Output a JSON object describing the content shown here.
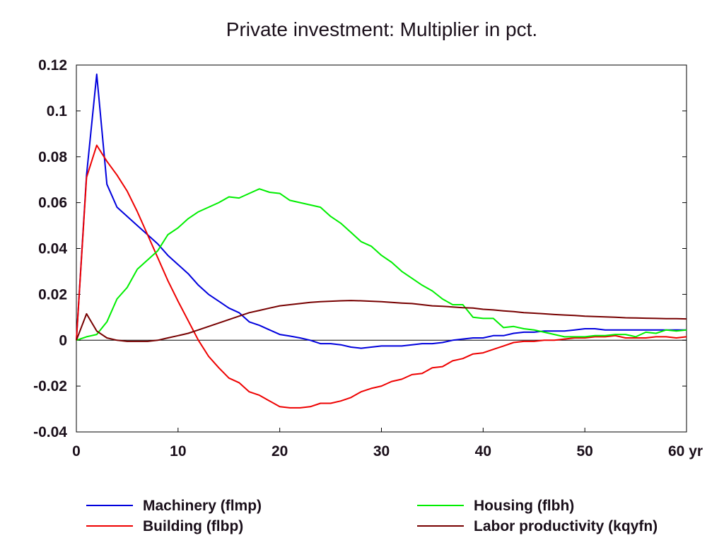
{
  "chart_data": {
    "type": "line",
    "title": "Private investment: Multiplier in pct.",
    "x_unit_label": "yr",
    "xlim": [
      0,
      60
    ],
    "ylim": [
      -0.04,
      0.12
    ],
    "x_ticks": [
      0,
      10,
      20,
      30,
      40,
      50,
      60
    ],
    "x_tick_labels": [
      "0",
      "10",
      "20",
      "30",
      "40",
      "50",
      "60 yr"
    ],
    "y_ticks": [
      -0.04,
      -0.02,
      0,
      0.02,
      0.04,
      0.06,
      0.08,
      0.1,
      0.12
    ],
    "y_tick_labels": [
      "-0.04",
      "-0.02",
      "0",
      "0.02",
      "0.04",
      "0.06",
      "0.08",
      "0.1",
      "0.12"
    ],
    "zero_line": true,
    "grid": false,
    "legend_position": "bottom",
    "series": [
      {
        "name": "Machinery (flmp)",
        "color": "#0000dd",
        "points": [
          [
            0,
            0
          ],
          [
            1,
            0.072
          ],
          [
            2,
            0.116
          ],
          [
            3,
            0.068
          ],
          [
            4,
            0.058
          ],
          [
            5,
            0.054
          ],
          [
            6,
            0.05
          ],
          [
            7,
            0.046
          ],
          [
            8,
            0.042
          ],
          [
            9,
            0.037
          ],
          [
            10,
            0.033
          ],
          [
            11,
            0.029
          ],
          [
            12,
            0.024
          ],
          [
            13,
            0.02
          ],
          [
            14,
            0.017
          ],
          [
            15,
            0.014
          ],
          [
            16,
            0.012
          ],
          [
            17,
            0.008
          ],
          [
            18,
            0.0065
          ],
          [
            19,
            0.0045
          ],
          [
            20,
            0.0025
          ],
          [
            21,
            0.0018
          ],
          [
            22,
            0.001
          ],
          [
            23,
            0
          ],
          [
            24,
            -0.0015
          ],
          [
            25,
            -0.0015
          ],
          [
            26,
            -0.002
          ],
          [
            27,
            -0.003
          ],
          [
            28,
            -0.0035
          ],
          [
            29,
            -0.003
          ],
          [
            30,
            -0.0025
          ],
          [
            31,
            -0.0025
          ],
          [
            32,
            -0.0025
          ],
          [
            33,
            -0.002
          ],
          [
            34,
            -0.0015
          ],
          [
            35,
            -0.0015
          ],
          [
            36,
            -0.001
          ],
          [
            37,
            0
          ],
          [
            38,
            0.0005
          ],
          [
            39,
            0.001
          ],
          [
            40,
            0.001
          ],
          [
            41,
            0.002
          ],
          [
            42,
            0.002
          ],
          [
            43,
            0.003
          ],
          [
            44,
            0.0035
          ],
          [
            45,
            0.0035
          ],
          [
            46,
            0.004
          ],
          [
            47,
            0.004
          ],
          [
            48,
            0.004
          ],
          [
            49,
            0.0045
          ],
          [
            50,
            0.005
          ],
          [
            51,
            0.005
          ],
          [
            52,
            0.0045
          ],
          [
            53,
            0.0045
          ],
          [
            54,
            0.0045
          ],
          [
            55,
            0.0045
          ],
          [
            56,
            0.0045
          ],
          [
            57,
            0.0045
          ],
          [
            58,
            0.0045
          ],
          [
            59,
            0.0045
          ],
          [
            60,
            0.0045
          ]
        ]
      },
      {
        "name": "Building (flbp)",
        "color": "#ee0000",
        "points": [
          [
            0,
            0
          ],
          [
            1,
            0.071
          ],
          [
            2,
            0.085
          ],
          [
            3,
            0.078
          ],
          [
            4,
            0.072
          ],
          [
            5,
            0.065
          ],
          [
            6,
            0.056
          ],
          [
            7,
            0.046
          ],
          [
            8,
            0.036
          ],
          [
            9,
            0.026
          ],
          [
            10,
            0.017
          ],
          [
            11,
            0.0085
          ],
          [
            12,
            0
          ],
          [
            13,
            -0.007
          ],
          [
            14,
            -0.012
          ],
          [
            15,
            -0.0165
          ],
          [
            16,
            -0.0185
          ],
          [
            17,
            -0.0225
          ],
          [
            18,
            -0.024
          ],
          [
            19,
            -0.0265
          ],
          [
            20,
            -0.029
          ],
          [
            21,
            -0.0295
          ],
          [
            22,
            -0.0295
          ],
          [
            23,
            -0.029
          ],
          [
            24,
            -0.0275
          ],
          [
            25,
            -0.0275
          ],
          [
            26,
            -0.0265
          ],
          [
            27,
            -0.025
          ],
          [
            28,
            -0.0225
          ],
          [
            29,
            -0.021
          ],
          [
            30,
            -0.02
          ],
          [
            31,
            -0.018
          ],
          [
            32,
            -0.017
          ],
          [
            33,
            -0.015
          ],
          [
            34,
            -0.0145
          ],
          [
            35,
            -0.012
          ],
          [
            36,
            -0.0115
          ],
          [
            37,
            -0.009
          ],
          [
            38,
            -0.008
          ],
          [
            39,
            -0.006
          ],
          [
            40,
            -0.0055
          ],
          [
            41,
            -0.004
          ],
          [
            42,
            -0.0025
          ],
          [
            43,
            -0.001
          ],
          [
            44,
            -0.0005
          ],
          [
            45,
            -0.0005
          ],
          [
            46,
            0
          ],
          [
            47,
            0
          ],
          [
            48,
            0.0005
          ],
          [
            49,
            0.001
          ],
          [
            50,
            0.001
          ],
          [
            51,
            0.0015
          ],
          [
            52,
            0.0015
          ],
          [
            53,
            0.002
          ],
          [
            54,
            0.001
          ],
          [
            55,
            0.001
          ],
          [
            56,
            0.001
          ],
          [
            57,
            0.0015
          ],
          [
            58,
            0.0015
          ],
          [
            59,
            0.001
          ],
          [
            60,
            0.0015
          ]
        ]
      },
      {
        "name": "Housing (flbh)",
        "color": "#00ee00",
        "points": [
          [
            0,
            0
          ],
          [
            1,
            0.0015
          ],
          [
            2,
            0.0025
          ],
          [
            3,
            0.008
          ],
          [
            4,
            0.018
          ],
          [
            5,
            0.023
          ],
          [
            6,
            0.031
          ],
          [
            7,
            0.035
          ],
          [
            8,
            0.039
          ],
          [
            9,
            0.046
          ],
          [
            10,
            0.049
          ],
          [
            11,
            0.053
          ],
          [
            12,
            0.056
          ],
          [
            13,
            0.058
          ],
          [
            14,
            0.06
          ],
          [
            15,
            0.0625
          ],
          [
            16,
            0.062
          ],
          [
            17,
            0.064
          ],
          [
            18,
            0.066
          ],
          [
            19,
            0.0645
          ],
          [
            20,
            0.064
          ],
          [
            21,
            0.061
          ],
          [
            22,
            0.06
          ],
          [
            23,
            0.059
          ],
          [
            24,
            0.058
          ],
          [
            25,
            0.054
          ],
          [
            26,
            0.051
          ],
          [
            27,
            0.047
          ],
          [
            28,
            0.043
          ],
          [
            29,
            0.041
          ],
          [
            30,
            0.037
          ],
          [
            31,
            0.034
          ],
          [
            32,
            0.03
          ],
          [
            33,
            0.027
          ],
          [
            34,
            0.024
          ],
          [
            35,
            0.0215
          ],
          [
            36,
            0.018
          ],
          [
            37,
            0.0155
          ],
          [
            38,
            0.0155
          ],
          [
            39,
            0.01
          ],
          [
            40,
            0.0095
          ],
          [
            41,
            0.0095
          ],
          [
            42,
            0.0055
          ],
          [
            43,
            0.006
          ],
          [
            44,
            0.005
          ],
          [
            45,
            0.0045
          ],
          [
            46,
            0.0035
          ],
          [
            47,
            0.0025
          ],
          [
            48,
            0.0015
          ],
          [
            49,
            0.0015
          ],
          [
            50,
            0.0015
          ],
          [
            51,
            0.002
          ],
          [
            52,
            0.002
          ],
          [
            53,
            0.0025
          ],
          [
            54,
            0.0025
          ],
          [
            55,
            0.0015
          ],
          [
            56,
            0.0035
          ],
          [
            57,
            0.003
          ],
          [
            58,
            0.0045
          ],
          [
            59,
            0.004
          ],
          [
            60,
            0.0045
          ]
        ]
      },
      {
        "name": "Labor productivity (kqyfn)",
        "color": "#770000",
        "points": [
          [
            0,
            0
          ],
          [
            1,
            0.0115
          ],
          [
            2,
            0.004
          ],
          [
            3,
            0.001
          ],
          [
            4,
            0
          ],
          [
            5,
            -0.0005
          ],
          [
            6,
            -0.0005
          ],
          [
            7,
            -0.0005
          ],
          [
            8,
            0
          ],
          [
            9,
            0.001
          ],
          [
            10,
            0.002
          ],
          [
            11,
            0.003
          ],
          [
            12,
            0.0045
          ],
          [
            13,
            0.006
          ],
          [
            14,
            0.0075
          ],
          [
            15,
            0.009
          ],
          [
            16,
            0.0105
          ],
          [
            17,
            0.012
          ],
          [
            18,
            0.013
          ],
          [
            19,
            0.014
          ],
          [
            20,
            0.015
          ],
          [
            21,
            0.0155
          ],
          [
            22,
            0.016
          ],
          [
            23,
            0.0165
          ],
          [
            24,
            0.0168
          ],
          [
            25,
            0.017
          ],
          [
            26,
            0.0172
          ],
          [
            27,
            0.0173
          ],
          [
            28,
            0.0172
          ],
          [
            29,
            0.017
          ],
          [
            30,
            0.0168
          ],
          [
            31,
            0.0165
          ],
          [
            32,
            0.0162
          ],
          [
            33,
            0.016
          ],
          [
            34,
            0.0155
          ],
          [
            35,
            0.015
          ],
          [
            36,
            0.0148
          ],
          [
            37,
            0.0145
          ],
          [
            38,
            0.0142
          ],
          [
            39,
            0.014
          ],
          [
            40,
            0.0135
          ],
          [
            41,
            0.0132
          ],
          [
            42,
            0.0128
          ],
          [
            43,
            0.0125
          ],
          [
            44,
            0.012
          ],
          [
            45,
            0.0118
          ],
          [
            46,
            0.0115
          ],
          [
            47,
            0.0112
          ],
          [
            48,
            0.011
          ],
          [
            49,
            0.0108
          ],
          [
            50,
            0.0105
          ],
          [
            51,
            0.0103
          ],
          [
            52,
            0.0102
          ],
          [
            53,
            0.01
          ],
          [
            54,
            0.0098
          ],
          [
            55,
            0.0097
          ],
          [
            56,
            0.0096
          ],
          [
            57,
            0.0095
          ],
          [
            58,
            0.0094
          ],
          [
            59,
            0.0094
          ],
          [
            60,
            0.0093
          ]
        ]
      }
    ]
  }
}
